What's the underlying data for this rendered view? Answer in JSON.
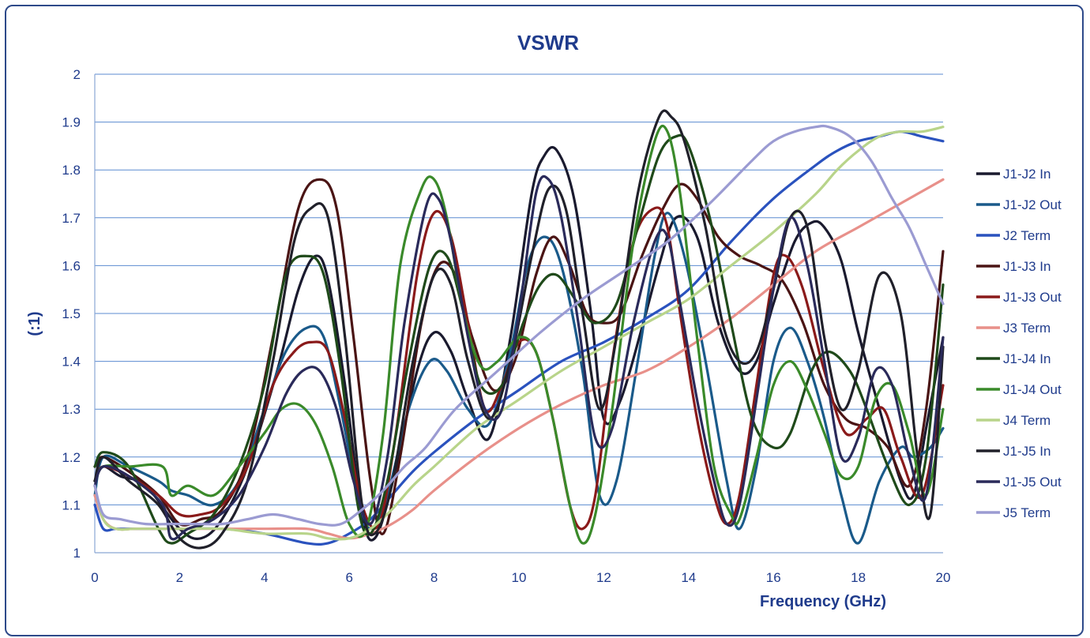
{
  "chart_data": {
    "type": "line",
    "title": "VSWR",
    "xlabel": "Frequency (GHz)",
    "ylabel": "(:1)",
    "xlim": [
      0,
      20
    ],
    "ylim": [
      1,
      2
    ],
    "x_ticks": [
      "0",
      "2",
      "4",
      "6",
      "8",
      "10",
      "12",
      "14",
      "16",
      "18",
      "20"
    ],
    "y_ticks": [
      "1",
      "1.1",
      "1.2",
      "1.3",
      "1.4",
      "1.5",
      "1.6",
      "1.7",
      "1.8",
      "1.9",
      "2"
    ],
    "grid": "horizontal",
    "legend_position": "right",
    "series": [
      {
        "name": "J1-J2 In",
        "color": "#1a1a2e",
        "x": [
          0,
          0.2,
          0.6,
          1.2,
          2.0,
          2.5,
          3.0,
          3.6,
          4.3,
          4.8,
          5.2,
          5.5,
          5.9,
          6.3,
          6.6,
          7.0,
          7.6,
          8.0,
          8.4,
          8.8,
          9.3,
          9.8,
          10.3,
          10.6,
          10.9,
          11.3,
          11.7,
          12.0,
          12.4,
          12.9,
          13.3,
          13.7,
          14.2,
          14.7,
          15.2,
          15.6,
          16.0,
          16.5,
          16.9,
          17.2,
          17.6,
          18.0,
          18.5,
          19.0,
          19.3,
          19.6,
          20
        ],
        "y": [
          1.15,
          1.18,
          1.16,
          1.14,
          1.05,
          1.03,
          1.07,
          1.18,
          1.38,
          1.55,
          1.62,
          1.57,
          1.35,
          1.08,
          1.03,
          1.14,
          1.38,
          1.46,
          1.42,
          1.32,
          1.24,
          1.45,
          1.75,
          1.83,
          1.84,
          1.74,
          1.5,
          1.28,
          1.32,
          1.47,
          1.6,
          1.7,
          1.66,
          1.48,
          1.38,
          1.4,
          1.52,
          1.65,
          1.69,
          1.68,
          1.61,
          1.46,
          1.3,
          1.15,
          1.12,
          1.26,
          1.45
        ]
      },
      {
        "name": "J1-J2 Out",
        "color": "#1a5a8a",
        "x": [
          0,
          0.2,
          0.8,
          1.5,
          1.8,
          2.2,
          2.8,
          3.4,
          4.0,
          4.5,
          5.0,
          5.4,
          5.8,
          6.2,
          6.5,
          6.9,
          7.4,
          7.9,
          8.3,
          8.8,
          9.3,
          9.8,
          10.2,
          10.6,
          11.0,
          11.5,
          11.9,
          12.3,
          12.8,
          13.2,
          13.5,
          13.9,
          14.4,
          14.9,
          15.2,
          15.6,
          16.0,
          16.4,
          16.8,
          17.2,
          17.6,
          18.0,
          18.5,
          19.0,
          19.3,
          19.7,
          20
        ],
        "y": [
          1.12,
          1.2,
          1.18,
          1.15,
          1.13,
          1.12,
          1.1,
          1.15,
          1.3,
          1.42,
          1.47,
          1.45,
          1.3,
          1.12,
          1.05,
          1.12,
          1.3,
          1.4,
          1.38,
          1.3,
          1.27,
          1.42,
          1.6,
          1.66,
          1.6,
          1.38,
          1.12,
          1.15,
          1.4,
          1.62,
          1.71,
          1.62,
          1.4,
          1.15,
          1.05,
          1.18,
          1.4,
          1.47,
          1.4,
          1.28,
          1.12,
          1.02,
          1.15,
          1.22,
          1.2,
          1.22,
          1.26
        ]
      },
      {
        "name": "J2 Term",
        "color": "#2a52be",
        "x": [
          0,
          0.2,
          0.5,
          1,
          2,
          3,
          4,
          5,
          5.5,
          6.0,
          6.5,
          7.0,
          7.5,
          8.0,
          9.0,
          10.0,
          11.0,
          12.0,
          13.0,
          14.0,
          15.0,
          16.0,
          17.0,
          17.5,
          18.0,
          18.5,
          19.0,
          19.5,
          20
        ],
        "y": [
          1.1,
          1.05,
          1.05,
          1.05,
          1.05,
          1.05,
          1.04,
          1.02,
          1.02,
          1.04,
          1.07,
          1.12,
          1.17,
          1.21,
          1.28,
          1.34,
          1.4,
          1.44,
          1.49,
          1.55,
          1.65,
          1.74,
          1.81,
          1.84,
          1.86,
          1.87,
          1.88,
          1.87,
          1.86
        ]
      },
      {
        "name": "J1-J3 In",
        "color": "#4a1414",
        "x": [
          0,
          0.2,
          0.8,
          1.5,
          2.0,
          2.5,
          3.0,
          3.6,
          4.2,
          4.8,
          5.3,
          5.7,
          6.1,
          6.5,
          6.8,
          7.2,
          7.7,
          8.1,
          8.5,
          8.9,
          9.4,
          9.9,
          10.4,
          10.8,
          11.2,
          11.6,
          12.0,
          12.4,
          12.9,
          13.4,
          13.8,
          14.2,
          14.7,
          15.2,
          15.7,
          16.2,
          16.7,
          17.2,
          17.7,
          18.2,
          18.7,
          19.2,
          19.6,
          20
        ],
        "y": [
          1.18,
          1.2,
          1.17,
          1.12,
          1.06,
          1.07,
          1.09,
          1.2,
          1.45,
          1.72,
          1.78,
          1.72,
          1.45,
          1.15,
          1.04,
          1.2,
          1.48,
          1.6,
          1.58,
          1.45,
          1.34,
          1.4,
          1.58,
          1.66,
          1.6,
          1.5,
          1.48,
          1.5,
          1.62,
          1.72,
          1.77,
          1.74,
          1.66,
          1.62,
          1.6,
          1.57,
          1.48,
          1.35,
          1.28,
          1.26,
          1.22,
          1.14,
          1.3,
          1.63
        ]
      },
      {
        "name": "J1-J3 Out",
        "color": "#8a1a1a",
        "x": [
          0,
          0.2,
          0.8,
          1.5,
          2.0,
          2.5,
          3.0,
          3.6,
          4.2,
          4.7,
          5.1,
          5.5,
          5.9,
          6.3,
          6.7,
          7.1,
          7.6,
          8.0,
          8.4,
          8.8,
          9.2,
          9.6,
          10.0,
          10.4,
          10.8,
          11.2,
          11.5,
          11.8,
          12.2,
          12.7,
          13.2,
          13.5,
          13.8,
          14.2,
          14.6,
          14.9,
          15.2,
          15.6,
          16.0,
          16.3,
          16.7,
          17.2,
          17.7,
          18.2,
          18.6,
          19.0,
          19.5,
          20
        ],
        "y": [
          1.15,
          1.18,
          1.16,
          1.12,
          1.08,
          1.08,
          1.1,
          1.18,
          1.35,
          1.42,
          1.44,
          1.42,
          1.28,
          1.1,
          1.06,
          1.25,
          1.58,
          1.71,
          1.66,
          1.48,
          1.3,
          1.35,
          1.44,
          1.42,
          1.28,
          1.1,
          1.05,
          1.12,
          1.4,
          1.65,
          1.72,
          1.68,
          1.5,
          1.28,
          1.12,
          1.06,
          1.12,
          1.35,
          1.58,
          1.62,
          1.55,
          1.38,
          1.25,
          1.28,
          1.3,
          1.2,
          1.12,
          1.35
        ]
      },
      {
        "name": "J3 Term",
        "color": "#e8908a",
        "x": [
          0,
          0.2,
          0.5,
          1,
          2,
          3,
          4,
          5,
          5.5,
          6.0,
          6.5,
          7.0,
          7.5,
          8.0,
          9.0,
          10.0,
          11.0,
          12.0,
          13.0,
          14.0,
          15.0,
          16.0,
          17.0,
          18.0,
          19.0,
          20
        ],
        "y": [
          1.12,
          1.07,
          1.05,
          1.05,
          1.05,
          1.05,
          1.05,
          1.05,
          1.04,
          1.03,
          1.04,
          1.06,
          1.09,
          1.13,
          1.2,
          1.26,
          1.31,
          1.35,
          1.38,
          1.43,
          1.49,
          1.56,
          1.63,
          1.68,
          1.73,
          1.78
        ]
      },
      {
        "name": "J1-J4 In",
        "color": "#1f4a1a",
        "x": [
          0,
          0.2,
          0.8,
          1.5,
          1.8,
          2.2,
          2.8,
          3.4,
          4.0,
          4.5,
          5.0,
          5.4,
          5.8,
          6.2,
          6.5,
          6.9,
          7.4,
          7.9,
          8.3,
          8.7,
          9.1,
          9.6,
          10.1,
          10.5,
          10.9,
          11.4,
          11.8,
          12.3,
          12.8,
          13.3,
          13.7,
          14.0,
          14.5,
          15.0,
          15.5,
          16.0,
          16.4,
          16.9,
          17.3,
          17.8,
          18.2,
          18.7,
          19.2,
          19.6,
          20
        ],
        "y": [
          1.18,
          1.21,
          1.18,
          1.05,
          1.02,
          1.04,
          1.08,
          1.18,
          1.35,
          1.58,
          1.62,
          1.58,
          1.38,
          1.1,
          1.04,
          1.15,
          1.4,
          1.6,
          1.62,
          1.5,
          1.35,
          1.35,
          1.48,
          1.56,
          1.58,
          1.52,
          1.48,
          1.52,
          1.68,
          1.83,
          1.87,
          1.85,
          1.7,
          1.48,
          1.28,
          1.22,
          1.25,
          1.38,
          1.42,
          1.38,
          1.3,
          1.18,
          1.1,
          1.2,
          1.56
        ]
      },
      {
        "name": "J1-J4 Out",
        "color": "#3a8a2a",
        "x": [
          0,
          0.2,
          0.8,
          1.6,
          1.8,
          2.2,
          2.8,
          3.4,
          4.0,
          4.4,
          4.8,
          5.2,
          5.6,
          6.0,
          6.4,
          6.8,
          7.2,
          7.7,
          8.0,
          8.3,
          8.7,
          9.1,
          9.5,
          10.0,
          10.4,
          10.8,
          11.2,
          11.5,
          11.8,
          12.2,
          12.7,
          13.2,
          13.5,
          13.8,
          14.2,
          14.6,
          15.0,
          15.2,
          15.6,
          16.0,
          16.4,
          16.8,
          17.2,
          17.6,
          18.0,
          18.4,
          18.8,
          19.2,
          19.6,
          20
        ],
        "y": [
          1.15,
          1.18,
          1.18,
          1.18,
          1.12,
          1.14,
          1.12,
          1.18,
          1.25,
          1.3,
          1.31,
          1.27,
          1.18,
          1.06,
          1.05,
          1.25,
          1.6,
          1.76,
          1.78,
          1.7,
          1.5,
          1.39,
          1.4,
          1.45,
          1.42,
          1.28,
          1.1,
          1.02,
          1.08,
          1.3,
          1.65,
          1.86,
          1.88,
          1.75,
          1.45,
          1.18,
          1.08,
          1.07,
          1.2,
          1.35,
          1.4,
          1.34,
          1.25,
          1.16,
          1.18,
          1.32,
          1.35,
          1.25,
          1.12,
          1.3
        ]
      },
      {
        "name": "J4 Term",
        "color": "#b8d48a",
        "x": [
          0,
          0.2,
          0.5,
          1,
          2,
          3,
          4,
          5,
          5.5,
          6.0,
          6.5,
          7.0,
          7.5,
          8.0,
          9.0,
          10.0,
          11.0,
          12.0,
          13.0,
          14.0,
          15.0,
          16.0,
          17.0,
          17.5,
          18.0,
          18.5,
          19.0,
          19.5,
          20
        ],
        "y": [
          1.14,
          1.07,
          1.05,
          1.05,
          1.05,
          1.05,
          1.04,
          1.04,
          1.03,
          1.03,
          1.05,
          1.09,
          1.14,
          1.18,
          1.26,
          1.32,
          1.38,
          1.43,
          1.48,
          1.53,
          1.6,
          1.67,
          1.75,
          1.8,
          1.84,
          1.87,
          1.88,
          1.88,
          1.89
        ]
      },
      {
        "name": "J1-J5 In",
        "color": "#20202a",
        "x": [
          0,
          0.2,
          0.8,
          1.5,
          2.0,
          2.5,
          3.0,
          3.6,
          4.2,
          4.7,
          5.1,
          5.5,
          5.9,
          6.3,
          6.6,
          7.0,
          7.5,
          8.0,
          8.4,
          8.8,
          9.3,
          9.8,
          10.3,
          10.7,
          11.1,
          11.5,
          11.9,
          12.3,
          12.8,
          13.3,
          13.6,
          13.9,
          14.4,
          14.8,
          15.2,
          15.6,
          16.0,
          16.4,
          16.8,
          17.2,
          17.6,
          18.0,
          18.5,
          19.0,
          19.4,
          19.7,
          20
        ],
        "y": [
          1.15,
          1.2,
          1.15,
          1.1,
          1.03,
          1.01,
          1.04,
          1.15,
          1.4,
          1.65,
          1.72,
          1.7,
          1.45,
          1.1,
          1.04,
          1.14,
          1.4,
          1.58,
          1.56,
          1.4,
          1.28,
          1.4,
          1.62,
          1.76,
          1.72,
          1.5,
          1.3,
          1.45,
          1.75,
          1.91,
          1.91,
          1.86,
          1.68,
          1.48,
          1.4,
          1.42,
          1.55,
          1.7,
          1.68,
          1.45,
          1.3,
          1.38,
          1.58,
          1.5,
          1.2,
          1.08,
          1.43
        ]
      },
      {
        "name": "J1-J5 Out",
        "color": "#2a2a5a",
        "x": [
          0,
          0.2,
          0.8,
          1.6,
          1.8,
          2.2,
          2.8,
          3.4,
          4.0,
          4.5,
          4.9,
          5.3,
          5.7,
          6.1,
          6.5,
          6.9,
          7.3,
          7.8,
          8.1,
          8.4,
          8.8,
          9.2,
          9.6,
          10.0,
          10.4,
          10.7,
          11.0,
          11.4,
          11.8,
          12.2,
          12.7,
          13.2,
          13.5,
          13.8,
          14.2,
          14.6,
          14.9,
          15.2,
          15.6,
          16.0,
          16.4,
          16.8,
          17.2,
          17.6,
          18.0,
          18.4,
          18.8,
          19.2,
          19.6,
          20
        ],
        "y": [
          1.14,
          1.18,
          1.16,
          1.1,
          1.03,
          1.05,
          1.07,
          1.12,
          1.22,
          1.33,
          1.38,
          1.38,
          1.3,
          1.15,
          1.06,
          1.2,
          1.48,
          1.72,
          1.74,
          1.65,
          1.45,
          1.3,
          1.3,
          1.5,
          1.75,
          1.78,
          1.7,
          1.48,
          1.24,
          1.26,
          1.48,
          1.65,
          1.66,
          1.52,
          1.32,
          1.15,
          1.06,
          1.1,
          1.32,
          1.55,
          1.7,
          1.6,
          1.4,
          1.2,
          1.24,
          1.38,
          1.35,
          1.2,
          1.12,
          1.45
        ]
      },
      {
        "name": "J5 Term",
        "color": "#9b9bd2",
        "x": [
          0,
          0.2,
          0.6,
          1.2,
          1.8,
          2.4,
          3.0,
          3.6,
          4.2,
          4.8,
          5.3,
          5.8,
          6.3,
          6.8,
          7.3,
          7.8,
          8.5,
          9.5,
          10.5,
          11.5,
          12.5,
          13.5,
          14.5,
          15.5,
          16.0,
          16.5,
          17.0,
          17.3,
          17.8,
          18.3,
          18.8,
          19.2,
          19.6,
          20
        ],
        "y": [
          1.14,
          1.08,
          1.07,
          1.06,
          1.06,
          1.06,
          1.06,
          1.07,
          1.08,
          1.07,
          1.06,
          1.06,
          1.09,
          1.13,
          1.18,
          1.22,
          1.3,
          1.38,
          1.46,
          1.53,
          1.59,
          1.65,
          1.73,
          1.82,
          1.86,
          1.88,
          1.89,
          1.89,
          1.87,
          1.82,
          1.74,
          1.68,
          1.6,
          1.52
        ]
      }
    ]
  }
}
